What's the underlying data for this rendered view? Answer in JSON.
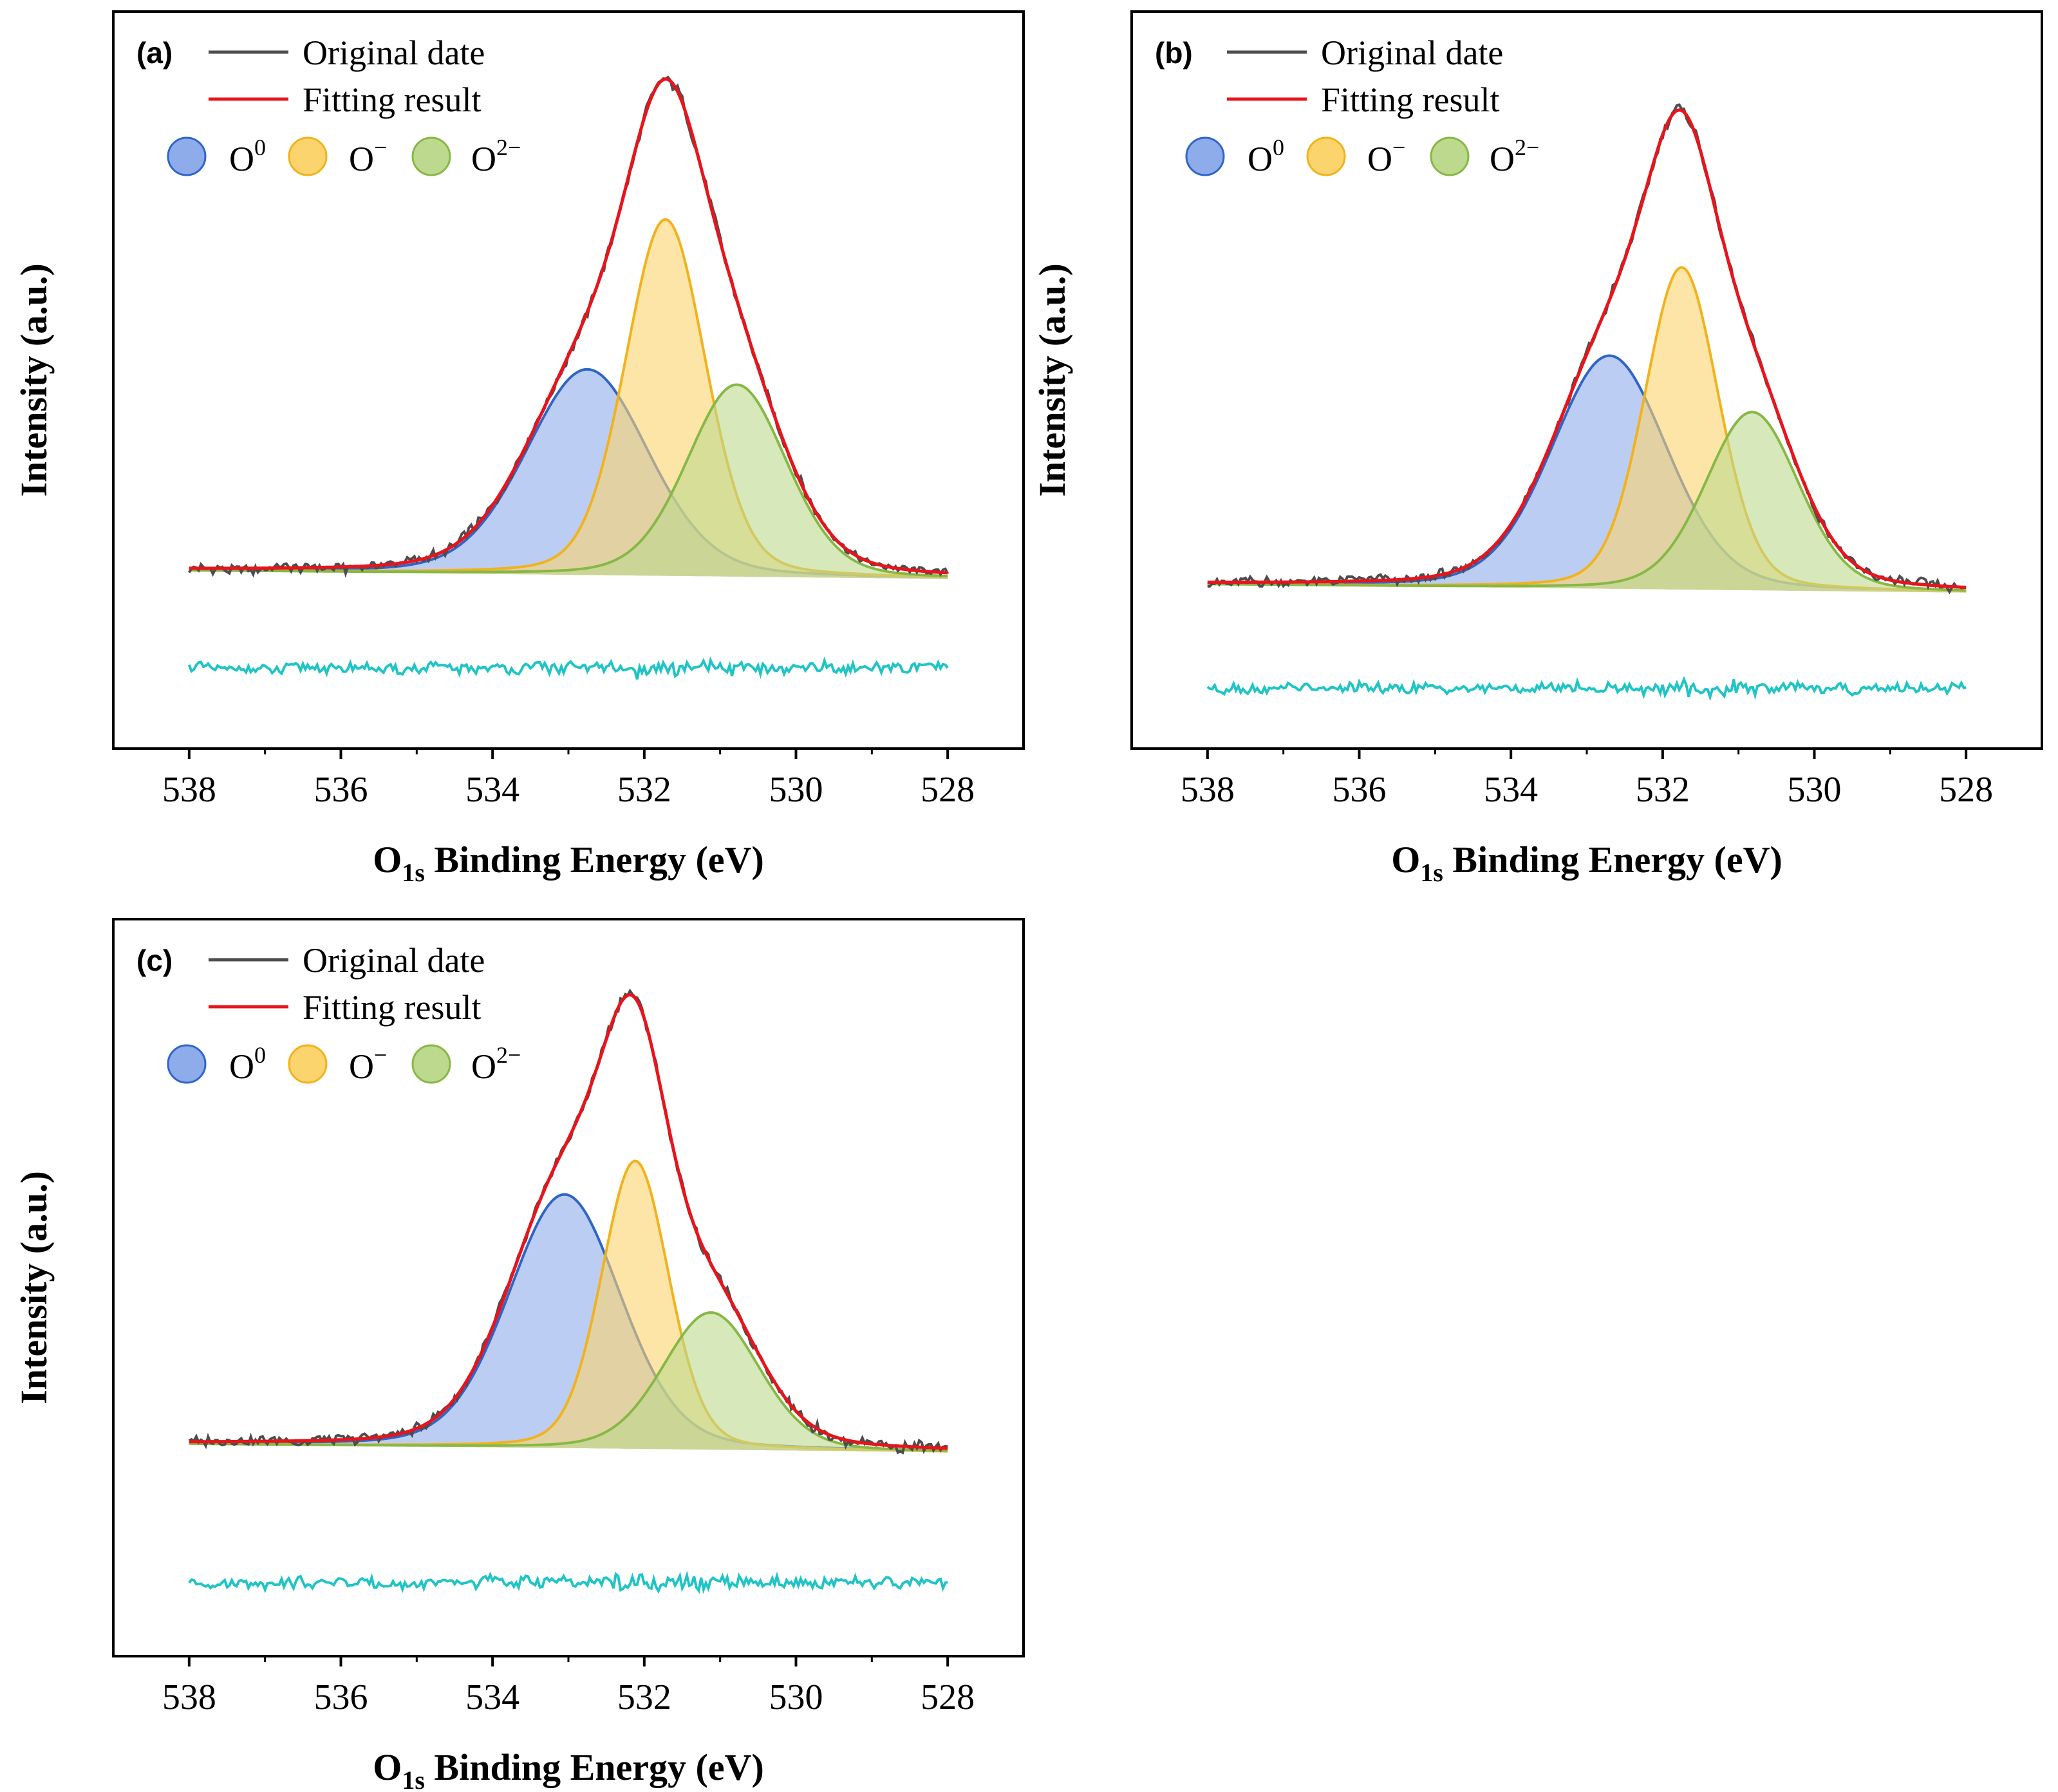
{
  "figure": {
    "panels": [
      {
        "letter": "(a)",
        "xlabel_main": "O",
        "xlabel_sub": "1s",
        "xlabel_rest": " Binding Energy (eV)",
        "ylabel": "Intensity (a.u.)"
      },
      {
        "letter": "(b)",
        "xlabel_main": "O",
        "xlabel_sub": "1s",
        "xlabel_rest": " Binding Energy (eV)",
        "ylabel": "Intensity (a.u.)"
      },
      {
        "letter": "(c)",
        "xlabel_main": "O",
        "xlabel_sub": "1s",
        "xlabel_rest": " Binding Energy (eV)",
        "ylabel": "Intensity (a.u.)"
      }
    ],
    "legend": {
      "original": "Original date",
      "fitting": "Fitting result",
      "o0_base": "O",
      "o0_sup": "0",
      "ominus_base": "O",
      "ominus_sup": "−",
      "o2minus_base": "O",
      "o2minus_sup": "2−"
    },
    "colors": {
      "original": "#4d4d4d",
      "fitting": "#e8141c",
      "residual": "#20c4c6",
      "o0_fill": "#8eacea",
      "o0_line": "#2f65c8",
      "ominus_fill": "#fcd46e",
      "ominus_line": "#f2b21c",
      "o2minus_fill": "#bcd98e",
      "o2minus_line": "#86b845"
    }
  },
  "chart_data": [
    {
      "type": "line",
      "title": "(a)",
      "xlabel": "O1s Binding Energy (eV)",
      "ylabel": "Intensity (a.u.)",
      "xlim": [
        539,
        527
      ],
      "xticks": [
        538,
        536,
        534,
        532,
        530,
        528
      ],
      "ylim": [
        0,
        1
      ],
      "y_ticks_shown": false,
      "baseline": 0.21,
      "components": [
        {
          "name": "O0",
          "center_eV": 532.75,
          "height": 0.3,
          "fwhm_eV": 1.9
        },
        {
          "name": "O−",
          "center_eV": 531.72,
          "height": 0.52,
          "fwhm_eV": 1.25
        },
        {
          "name": "O2−",
          "center_eV": 530.78,
          "height": 0.28,
          "fwhm_eV": 1.55
        }
      ],
      "fit_peak": {
        "x_eV": 531.7,
        "intensity": 0.93
      },
      "series": [
        {
          "name": "Original date"
        },
        {
          "name": "Fitting result"
        },
        {
          "name": "Residual",
          "offset": 0.08
        }
      ]
    },
    {
      "type": "line",
      "title": "(b)",
      "xlabel": "O1s Binding Energy (eV)",
      "ylabel": "Intensity (a.u.)",
      "xlim": [
        539,
        527
      ],
      "xticks": [
        538,
        536,
        534,
        532,
        530,
        528
      ],
      "ylim": [
        0,
        1
      ],
      "y_ticks_shown": false,
      "baseline": 0.19,
      "components": [
        {
          "name": "O0",
          "center_eV": 532.7,
          "height": 0.34,
          "fwhm_eV": 1.8
        },
        {
          "name": "O−",
          "center_eV": 531.75,
          "height": 0.47,
          "fwhm_eV": 1.15
        },
        {
          "name": "O2−",
          "center_eV": 530.82,
          "height": 0.26,
          "fwhm_eV": 1.45
        }
      ],
      "fit_peak": {
        "x_eV": 531.75,
        "intensity": 0.89
      },
      "series": [
        {
          "name": "Original date"
        },
        {
          "name": "Fitting result"
        },
        {
          "name": "Residual",
          "offset": 0.05
        }
      ]
    },
    {
      "type": "line",
      "title": "(c)",
      "xlabel": "O1s Binding Energy (eV)",
      "ylabel": "Intensity (a.u.)",
      "xlim": [
        539,
        527
      ],
      "xticks": [
        538,
        536,
        534,
        532,
        530,
        528
      ],
      "ylim": [
        0,
        1
      ],
      "y_ticks_shown": false,
      "baseline": 0.26,
      "components": [
        {
          "name": "O0",
          "center_eV": 533.05,
          "height": 0.37,
          "fwhm_eV": 1.75
        },
        {
          "name": "O−",
          "center_eV": 532.12,
          "height": 0.42,
          "fwhm_eV": 1.05
        },
        {
          "name": "O2−",
          "center_eV": 531.12,
          "height": 0.2,
          "fwhm_eV": 1.5
        }
      ],
      "fit_peak": {
        "x_eV": 532.2,
        "intensity": 0.93
      },
      "series": [
        {
          "name": "Original date"
        },
        {
          "name": "Fitting result"
        },
        {
          "name": "Residual",
          "offset": 0.07
        }
      ]
    }
  ]
}
